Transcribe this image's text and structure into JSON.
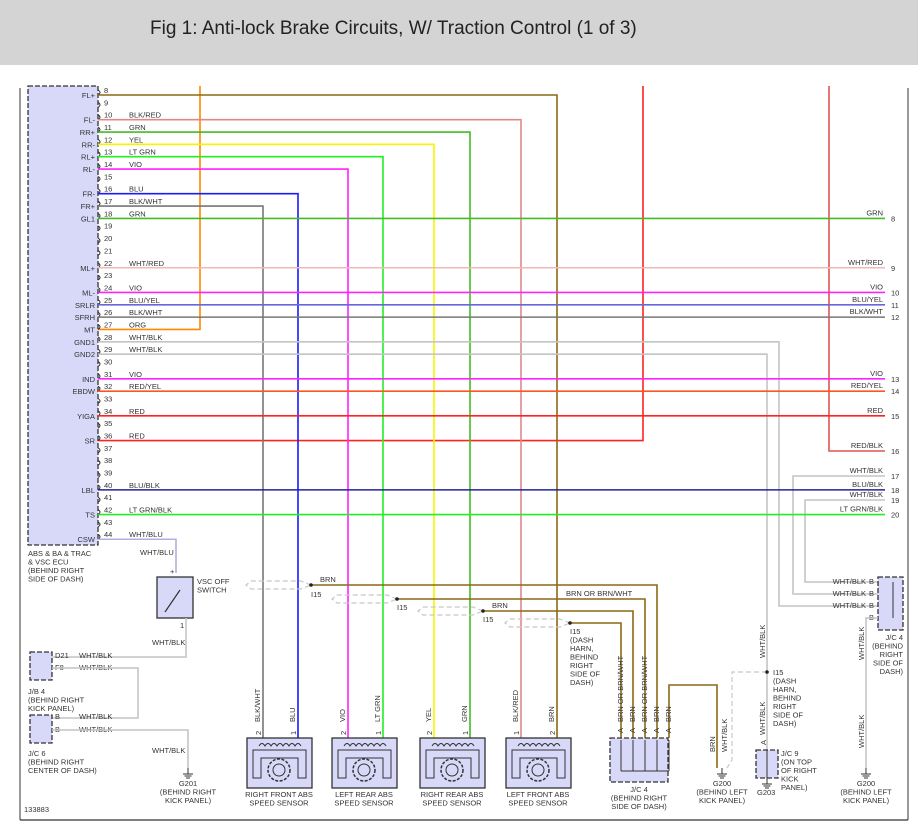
{
  "title": "Fig 1: Anti-lock Brake Circuits, W/ Traction Control (1 of 3)",
  "figure_id": "133883",
  "colors": {
    "BRN": "#8b6914",
    "BLK/RED": "#e08888",
    "GRN": "#44bb22",
    "YEL": "#f5f500",
    "LT GRN": "#22ee22",
    "VIO": "#ff22ff",
    "BLU": "#1a1aff",
    "BLK/WHT": "#777777",
    "WHT/RED": "#f2b8b8",
    "BLU/YEL": "#6666dd",
    "ORG": "#ff8800",
    "WHT/BLK": "#c4c4c4",
    "RED/YEL": "#ff5522",
    "RED": "#ff2222",
    "RED/BLK": "#dd5555",
    "BLU/BLK": "#222299",
    "LT GRN/BLK": "#22ee22",
    "WHT/BLU": "#b0b0e0",
    "BRN OR BRN/WHT": "#8b6914",
    "component_fill": "#d8d8f8"
  },
  "ecu": {
    "name_lines": [
      "ABS & BA & TRAC",
      "& VSC ECU",
      "(BEHIND RIGHT",
      "SIDE OF DASH)"
    ],
    "pins": [
      {
        "n": "8",
        "label": "FL+",
        "wire": ""
      },
      {
        "n": "9",
        "label": "",
        "wire": ""
      },
      {
        "n": "10",
        "label": "FL-",
        "wire": "BLK/RED"
      },
      {
        "n": "11",
        "label": "RR+",
        "wire": "GRN"
      },
      {
        "n": "12",
        "label": "RR-",
        "wire": "YEL"
      },
      {
        "n": "13",
        "label": "RL+",
        "wire": "LT GRN"
      },
      {
        "n": "14",
        "label": "RL-",
        "wire": "VIO"
      },
      {
        "n": "15",
        "label": "",
        "wire": ""
      },
      {
        "n": "16",
        "label": "FR-",
        "wire": "BLU"
      },
      {
        "n": "17",
        "label": "FR+",
        "wire": "BLK/WHT"
      },
      {
        "n": "18",
        "label": "GL1",
        "wire": "GRN"
      },
      {
        "n": "19",
        "label": "",
        "wire": ""
      },
      {
        "n": "20",
        "label": "",
        "wire": ""
      },
      {
        "n": "21",
        "label": "",
        "wire": ""
      },
      {
        "n": "22",
        "label": "ML+",
        "wire": "WHT/RED"
      },
      {
        "n": "23",
        "label": "",
        "wire": ""
      },
      {
        "n": "24",
        "label": "ML-",
        "wire": "VIO"
      },
      {
        "n": "25",
        "label": "SRLR",
        "wire": "BLU/YEL"
      },
      {
        "n": "26",
        "label": "SFRH",
        "wire": "BLK/WHT"
      },
      {
        "n": "27",
        "label": "MT",
        "wire": "ORG"
      },
      {
        "n": "28",
        "label": "GND1",
        "wire": "WHT/BLK"
      },
      {
        "n": "29",
        "label": "GND2",
        "wire": "WHT/BLK"
      },
      {
        "n": "30",
        "label": "",
        "wire": ""
      },
      {
        "n": "31",
        "label": "IND",
        "wire": "VIO"
      },
      {
        "n": "32",
        "label": "EBDW",
        "wire": "RED/YEL"
      },
      {
        "n": "33",
        "label": "",
        "wire": ""
      },
      {
        "n": "34",
        "label": "YIGA",
        "wire": "RED"
      },
      {
        "n": "35",
        "label": "",
        "wire": ""
      },
      {
        "n": "36",
        "label": "SR",
        "wire": "RED"
      },
      {
        "n": "37",
        "label": "",
        "wire": ""
      },
      {
        "n": "38",
        "label": "",
        "wire": ""
      },
      {
        "n": "39",
        "label": "",
        "wire": ""
      },
      {
        "n": "40",
        "label": "LBL",
        "wire": "BLU/BLK"
      },
      {
        "n": "41",
        "label": "",
        "wire": ""
      },
      {
        "n": "42",
        "label": "TS",
        "wire": "LT GRN/BLK"
      },
      {
        "n": "43",
        "label": "",
        "wire": ""
      },
      {
        "n": "44",
        "label": "CSW",
        "wire": "WHT/BLU"
      }
    ]
  },
  "right_endpoints": [
    {
      "n": "8",
      "wire": "GRN"
    },
    {
      "n": "9",
      "wire": "WHT/RED"
    },
    {
      "n": "10",
      "wire": "VIO"
    },
    {
      "n": "11",
      "wire": "BLU/YEL"
    },
    {
      "n": "12",
      "wire": "BLK/WHT"
    },
    {
      "n": "13",
      "wire": "VIO"
    },
    {
      "n": "14",
      "wire": "RED/YEL"
    },
    {
      "n": "15",
      "wire": "RED"
    },
    {
      "n": "16",
      "wire": "RED/BLK"
    },
    {
      "n": "17",
      "wire": "WHT/BLK"
    },
    {
      "n": "18",
      "wire": "BLU/BLK"
    },
    {
      "n": "19",
      "wire": "WHT/BLK"
    },
    {
      "n": "20",
      "wire": "LT GRN/BLK"
    }
  ],
  "vsc_switch": {
    "name_lines": [
      "VSC OFF",
      "SWITCH"
    ],
    "wire_in": "WHT/BLU",
    "wire_out": "WHT/BLK",
    "pin_top": "+",
    "pin_bottom": "1"
  },
  "jb4": {
    "name_lines": [
      "J/B 4",
      "(BEHIND RIGHT",
      "KICK PANEL)"
    ],
    "pins": [
      {
        "n": "D21",
        "wire": "WHT/BLK"
      },
      {
        "n": "F8",
        "wire": "WHT/BLK"
      }
    ]
  },
  "jc6": {
    "name_lines": [
      "J/C 6",
      "(BEHIND RIGHT",
      "CENTER OF DASH)"
    ],
    "pins": [
      {
        "n": "B",
        "wire": "WHT/BLK"
      },
      {
        "n": "B",
        "wire": "WHT/BLK"
      }
    ]
  },
  "g201": {
    "name_lines": [
      "G201",
      "(BEHIND RIGHT",
      "KICK PANEL)"
    ],
    "wire": "WHT/BLK"
  },
  "sensors": [
    {
      "name_lines": [
        "RIGHT FRONT ABS",
        "SPEED SENSOR"
      ],
      "pins": [
        {
          "n": "2",
          "wire": "BLK/WHT"
        },
        {
          "n": "1",
          "wire": "BLU"
        }
      ]
    },
    {
      "name_lines": [
        "LEFT REAR ABS",
        "SPEED SENSOR"
      ],
      "pins": [
        {
          "n": "2",
          "wire": "VIO"
        },
        {
          "n": "1",
          "wire": "LT GRN"
        }
      ]
    },
    {
      "name_lines": [
        "RIGHT REAR ABS",
        "SPEED SENSOR"
      ],
      "pins": [
        {
          "n": "2",
          "wire": "YEL"
        },
        {
          "n": "1",
          "wire": "GRN"
        }
      ]
    },
    {
      "name_lines": [
        "LEFT FRONT ABS",
        "SPEED SENSOR"
      ],
      "pins": [
        {
          "n": "1",
          "wire": "BLK/RED"
        },
        {
          "n": "2",
          "wire": "BRN"
        }
      ]
    }
  ],
  "splices": [
    {
      "name": "I15",
      "wire": "BRN"
    },
    {
      "name": "I15",
      "wire": "BRN OR BRN/WHT"
    },
    {
      "name": "I15",
      "wire": "BRN"
    },
    {
      "name_lines": [
        "I15",
        "(DASH",
        "HARN,",
        "BEHIND",
        "RIGHT",
        "SIDE OF",
        "DASH)"
      ]
    }
  ],
  "jc4_center": {
    "name_lines": [
      "J/C 4",
      "(BEHIND RIGHT",
      "SIDE OF DASH)"
    ],
    "pins": [
      {
        "n": "A",
        "wire": "BRN OR BRN/WHT"
      },
      {
        "n": "A",
        "wire": "BRN"
      },
      {
        "n": "A",
        "wire": "BRN OR BRN/WHT"
      },
      {
        "n": "A",
        "wire": "BRN"
      },
      {
        "n": "A",
        "wire": "BRN"
      }
    ]
  },
  "g200_left": {
    "name_lines": [
      "G200",
      "(BEHIND LEFT",
      "KICK PANEL)"
    ],
    "wires": [
      "BRN",
      "WHT/BLK"
    ]
  },
  "i15_right": {
    "name_lines": [
      "I15",
      "(DASH",
      "HARN,",
      "BEHIND",
      "RIGHT",
      "SIDE OF",
      "DASH)"
    ],
    "wire_top": "WHT/BLK",
    "wire_bottom": "WHT/BLK"
  },
  "jc9": {
    "name_lines": [
      "J/C 9",
      "(ON TOP",
      "OF RIGHT",
      "KICK",
      "PANEL)"
    ],
    "pin": "A",
    "ground": "G203"
  },
  "jc4_right": {
    "name_lines": [
      "J/C 4",
      "(BEHIND",
      "RIGHT",
      "SIDE OF",
      "DASH)"
    ],
    "pins": [
      {
        "n": "B",
        "wire": "WHT/BLK"
      },
      {
        "n": "B",
        "wire": "WHT/BLK"
      },
      {
        "n": "B",
        "wire": "WHT/BLK"
      },
      {
        "n": "B",
        "wire": ""
      }
    ]
  },
  "g200_right": {
    "name_lines": [
      "G200",
      "(BEHIND LEFT",
      "KICK PANEL)"
    ],
    "wire_top": "WHT/BLK",
    "wire_bottom": "WHT/BLK"
  }
}
